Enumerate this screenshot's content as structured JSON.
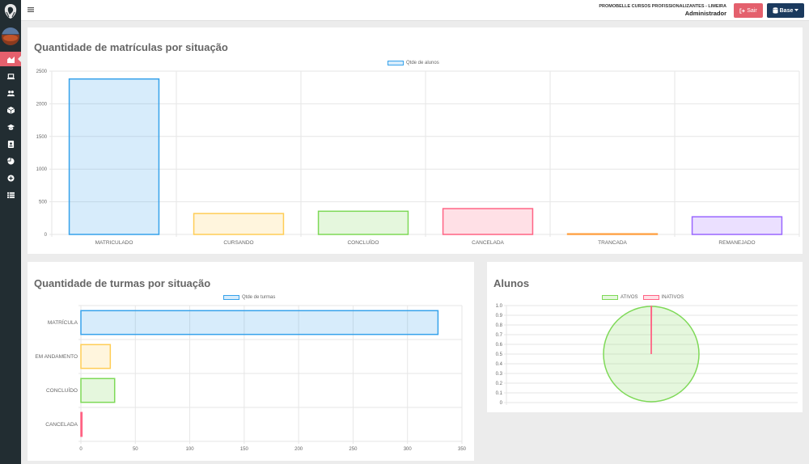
{
  "header": {
    "company": "PROMOBELLE CURSOS PROFISSIONALIZANTES - LIMEIRA",
    "role": "Administrador",
    "logout_label": "Sair",
    "base_label": "Base"
  },
  "sidebar": {
    "icons": [
      "chart-area-icon",
      "laptop-icon",
      "users-icon",
      "cube-icon",
      "graduation-cap-icon",
      "address-book-icon",
      "pie-chart-icon",
      "plus-circle-icon",
      "table-icon"
    ]
  },
  "colors": {
    "sidebar": "#222d32",
    "accent": "#e4606d",
    "base_button": "#1b3a5e",
    "blue": "#36a2eb",
    "yellow": "#ffcd56",
    "green": "#7ed957",
    "red": "#ff6384",
    "orange": "#ff9f40",
    "purple": "#9966ff"
  },
  "panels": {
    "matriculas": {
      "title": "Quantidade de matrículas por situação"
    },
    "turmas": {
      "title": "Quantidade de turmas por situação"
    },
    "alunos": {
      "title": "Alunos"
    }
  },
  "chart_data": [
    {
      "type": "bar",
      "title": "Quantidade de matrículas por situação",
      "categories": [
        "MATRICULADO",
        "CURSANDO",
        "CONCLUÍDO",
        "CANCELADA",
        "TRANCADA",
        "REMANEJADO"
      ],
      "series": [
        {
          "name": "Qtde de alunos",
          "values": [
            2380,
            320,
            355,
            395,
            10,
            270
          ]
        }
      ],
      "bar_colors": [
        "#36a2eb",
        "#ffcd56",
        "#7ed957",
        "#ff6384",
        "#ff9f40",
        "#9966ff"
      ],
      "yticks": [
        0,
        500,
        1000,
        1500,
        2000,
        2500
      ],
      "ylim": [
        0,
        2500
      ],
      "grid": true,
      "legend": "top-center"
    },
    {
      "type": "bar",
      "orientation": "horizontal",
      "title": "Quantidade de turmas por situação",
      "categories": [
        "MATRÍCULA",
        "EM ANDAMENTO",
        "CONCLUÍDO",
        "CANCELADA"
      ],
      "series": [
        {
          "name": "Qtde de turmas",
          "values": [
            328,
            27,
            31,
            1
          ]
        }
      ],
      "bar_colors": [
        "#36a2eb",
        "#ffcd56",
        "#7ed957",
        "#ff6384"
      ],
      "xticks": [
        0,
        50,
        100,
        150,
        200,
        250,
        300,
        350
      ],
      "xlim": [
        0,
        350
      ],
      "grid": true,
      "legend": "top-center"
    },
    {
      "type": "pie",
      "title": "Alunos",
      "labels": [
        "ATIVOS",
        "INATIVOS"
      ],
      "values": [
        1.0,
        0.001
      ],
      "colors": [
        "#7ed957",
        "#ff6384"
      ],
      "yticks": [
        "0",
        "0.1",
        "0.2",
        "0.3",
        "0.4",
        "0.5",
        "0.6",
        "0.7",
        "0.8",
        "0.9",
        "1.0"
      ],
      "legend": "top-center"
    }
  ]
}
